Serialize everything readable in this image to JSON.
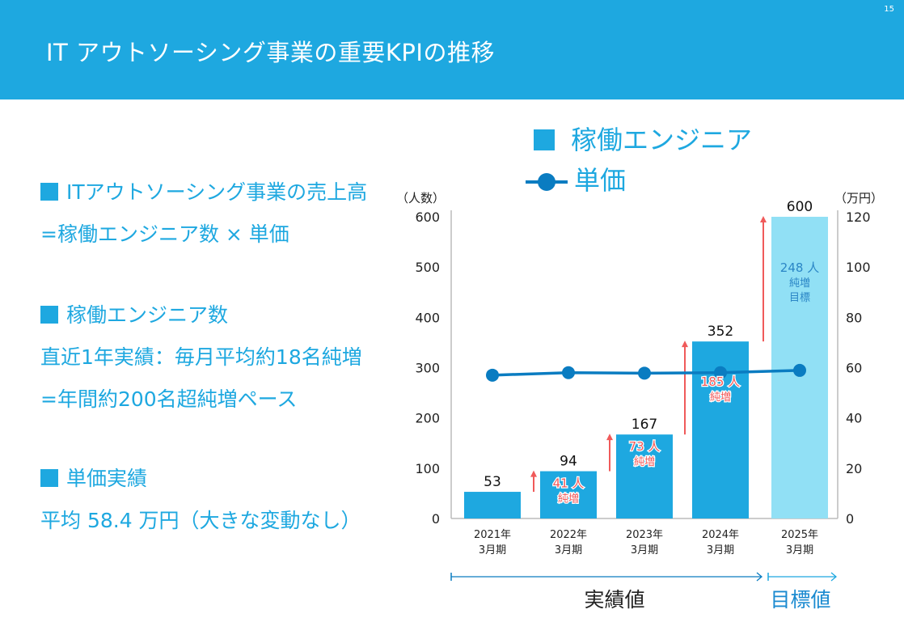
{
  "header": {
    "title": "IT アウトソーシング事業の重要KPIの推移",
    "page_number": "15"
  },
  "left": {
    "sections": [
      {
        "heading": "ITアウトソーシング事業の売上高",
        "lines": [
          "=稼働エンジニア数 × 単価"
        ]
      },
      {
        "heading": "稼働エンジニア数",
        "lines": [
          "直近1年実績：毎月平均約18名純増",
          "=年間約200名超純増ペース"
        ]
      },
      {
        "heading": "単価実績",
        "lines": [
          "平均 58.4 万円（大きな変動なし）"
        ]
      }
    ]
  },
  "chart_data": {
    "type": "bar+line",
    "categories": [
      "2021年\n3月期",
      "2022年\n3月期",
      "2023年\n3月期",
      "2024年\n3月期",
      "2025年\n3月期"
    ],
    "category_lines": [
      [
        "2021年",
        "3月期"
      ],
      [
        "2022年",
        "3月期"
      ],
      [
        "2023年",
        "3月期"
      ],
      [
        "2024年",
        "3月期"
      ],
      [
        "2025年",
        "3月期"
      ]
    ],
    "series": [
      {
        "name": "稼働エンジニア",
        "type": "bar",
        "axis": "left",
        "values": [
          53,
          94,
          167,
          352,
          600
        ],
        "value_labels": [
          "53",
          "94",
          "167",
          "352",
          "600"
        ]
      },
      {
        "name": "単価",
        "type": "line",
        "axis": "right",
        "values": [
          57.0,
          58.0,
          57.8,
          58.0,
          58.9
        ]
      }
    ],
    "increase_annotations": [
      null,
      [
        "41 人",
        "純増"
      ],
      [
        "73 人",
        "純増"
      ],
      [
        "185 人",
        "純増"
      ],
      [
        "248 人",
        "純増",
        "目標"
      ]
    ],
    "left_axis": {
      "label": "（人数）",
      "ylim": [
        0,
        600
      ],
      "ticks": [
        "0",
        "100",
        "200",
        "300",
        "400",
        "500",
        "600"
      ]
    },
    "right_axis": {
      "label": "（万円）",
      "ylim": [
        0,
        120
      ],
      "ticks": [
        "0",
        "20",
        "40",
        "60",
        "80",
        "100",
        "120"
      ]
    },
    "periods": [
      {
        "label": "実績値"
      },
      {
        "label": "目標値"
      }
    ],
    "colors": {
      "actual_bar": "#1EA8E0",
      "target_bar": "#91E0F5",
      "line": "#0A7CC1",
      "arrow": "#F05A5A",
      "annot_actual": "#F05A5A",
      "annot_target": "#2B86C6"
    }
  }
}
